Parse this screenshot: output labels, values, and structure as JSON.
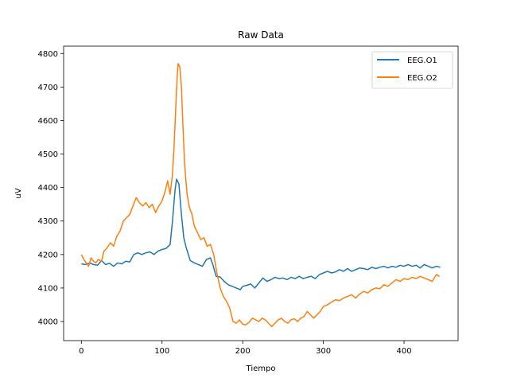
{
  "chart_data": {
    "type": "line",
    "title": "Raw Data",
    "xlabel": "Tiempo",
    "ylabel": "uV",
    "xlim": [
      -22,
      467
    ],
    "ylim": [
      3943,
      4822
    ],
    "xticks": [
      0,
      100,
      200,
      300,
      400
    ],
    "yticks": [
      4000,
      4100,
      4200,
      4300,
      4400,
      4500,
      4600,
      4700,
      4800
    ],
    "legend": "top-right",
    "grid": false,
    "series": [
      {
        "name": "EEG.O1",
        "color": "#1f77b4",
        "points": [
          [
            0,
            4172
          ],
          [
            5,
            4170
          ],
          [
            10,
            4175
          ],
          [
            15,
            4170
          ],
          [
            20,
            4168
          ],
          [
            25,
            4182
          ],
          [
            30,
            4170
          ],
          [
            35,
            4174
          ],
          [
            40,
            4165
          ],
          [
            45,
            4175
          ],
          [
            50,
            4172
          ],
          [
            55,
            4180
          ],
          [
            60,
            4178
          ],
          [
            65,
            4200
          ],
          [
            70,
            4205
          ],
          [
            75,
            4200
          ],
          [
            80,
            4205
          ],
          [
            85,
            4208
          ],
          [
            90,
            4200
          ],
          [
            95,
            4210
          ],
          [
            100,
            4215
          ],
          [
            105,
            4218
          ],
          [
            110,
            4230
          ],
          [
            113,
            4300
          ],
          [
            116,
            4390
          ],
          [
            118,
            4425
          ],
          [
            121,
            4410
          ],
          [
            124,
            4320
          ],
          [
            127,
            4250
          ],
          [
            130,
            4220
          ],
          [
            135,
            4182
          ],
          [
            140,
            4175
          ],
          [
            145,
            4170
          ],
          [
            150,
            4165
          ],
          [
            155,
            4185
          ],
          [
            160,
            4190
          ],
          [
            163,
            4170
          ],
          [
            167,
            4135
          ],
          [
            172,
            4133
          ],
          [
            177,
            4120
          ],
          [
            182,
            4110
          ],
          [
            187,
            4105
          ],
          [
            192,
            4100
          ],
          [
            197,
            4095
          ],
          [
            200,
            4105
          ],
          [
            205,
            4108
          ],
          [
            210,
            4112
          ],
          [
            215,
            4100
          ],
          [
            220,
            4115
          ],
          [
            225,
            4130
          ],
          [
            230,
            4120
          ],
          [
            235,
            4125
          ],
          [
            240,
            4132
          ],
          [
            245,
            4128
          ],
          [
            250,
            4130
          ],
          [
            255,
            4125
          ],
          [
            260,
            4132
          ],
          [
            265,
            4128
          ],
          [
            270,
            4135
          ],
          [
            275,
            4128
          ],
          [
            280,
            4132
          ],
          [
            285,
            4135
          ],
          [
            290,
            4128
          ],
          [
            295,
            4140
          ],
          [
            300,
            4145
          ],
          [
            305,
            4150
          ],
          [
            310,
            4145
          ],
          [
            315,
            4148
          ],
          [
            320,
            4155
          ],
          [
            325,
            4150
          ],
          [
            330,
            4158
          ],
          [
            335,
            4150
          ],
          [
            340,
            4155
          ],
          [
            345,
            4160
          ],
          [
            350,
            4158
          ],
          [
            355,
            4155
          ],
          [
            360,
            4162
          ],
          [
            365,
            4158
          ],
          [
            370,
            4162
          ],
          [
            375,
            4165
          ],
          [
            380,
            4160
          ],
          [
            385,
            4165
          ],
          [
            390,
            4162
          ],
          [
            395,
            4168
          ],
          [
            400,
            4165
          ],
          [
            405,
            4170
          ],
          [
            410,
            4165
          ],
          [
            415,
            4168
          ],
          [
            420,
            4160
          ],
          [
            425,
            4170
          ],
          [
            430,
            4165
          ],
          [
            435,
            4160
          ],
          [
            440,
            4165
          ],
          [
            445,
            4162
          ]
        ]
      },
      {
        "name": "EEG.O2",
        "color": "#ff7f0e",
        "points": [
          [
            0,
            4200
          ],
          [
            3,
            4185
          ],
          [
            6,
            4175
          ],
          [
            9,
            4165
          ],
          [
            12,
            4190
          ],
          [
            15,
            4180
          ],
          [
            18,
            4175
          ],
          [
            21,
            4185
          ],
          [
            25,
            4180
          ],
          [
            28,
            4210
          ],
          [
            32,
            4220
          ],
          [
            36,
            4235
          ],
          [
            40,
            4225
          ],
          [
            44,
            4255
          ],
          [
            48,
            4270
          ],
          [
            52,
            4300
          ],
          [
            56,
            4310
          ],
          [
            60,
            4320
          ],
          [
            64,
            4345
          ],
          [
            68,
            4370
          ],
          [
            72,
            4355
          ],
          [
            76,
            4345
          ],
          [
            80,
            4355
          ],
          [
            84,
            4340
          ],
          [
            88,
            4350
          ],
          [
            92,
            4325
          ],
          [
            96,
            4345
          ],
          [
            100,
            4360
          ],
          [
            104,
            4390
          ],
          [
            107,
            4420
          ],
          [
            110,
            4380
          ],
          [
            113,
            4440
          ],
          [
            115,
            4530
          ],
          [
            117,
            4640
          ],
          [
            119,
            4740
          ],
          [
            120,
            4770
          ],
          [
            122,
            4760
          ],
          [
            124,
            4700
          ],
          [
            126,
            4580
          ],
          [
            128,
            4470
          ],
          [
            131,
            4380
          ],
          [
            134,
            4340
          ],
          [
            137,
            4320
          ],
          [
            140,
            4285
          ],
          [
            144,
            4265
          ],
          [
            148,
            4245
          ],
          [
            152,
            4250
          ],
          [
            156,
            4225
          ],
          [
            160,
            4230
          ],
          [
            164,
            4200
          ],
          [
            168,
            4145
          ],
          [
            172,
            4100
          ],
          [
            176,
            4075
          ],
          [
            180,
            4060
          ],
          [
            184,
            4040
          ],
          [
            188,
            4000
          ],
          [
            192,
            3995
          ],
          [
            196,
            4005
          ],
          [
            200,
            3992
          ],
          [
            204,
            3990
          ],
          [
            208,
            3998
          ],
          [
            212,
            4010
          ],
          [
            216,
            4005
          ],
          [
            220,
            4000
          ],
          [
            224,
            4010
          ],
          [
            228,
            4005
          ],
          [
            232,
            3995
          ],
          [
            236,
            3985
          ],
          [
            240,
            3995
          ],
          [
            244,
            4005
          ],
          [
            248,
            4010
          ],
          [
            252,
            4000
          ],
          [
            256,
            3995
          ],
          [
            260,
            4005
          ],
          [
            264,
            4008
          ],
          [
            268,
            4000
          ],
          [
            272,
            4010
          ],
          [
            276,
            4015
          ],
          [
            280,
            4030
          ],
          [
            284,
            4020
          ],
          [
            288,
            4010
          ],
          [
            292,
            4020
          ],
          [
            296,
            4030
          ],
          [
            300,
            4045
          ],
          [
            305,
            4050
          ],
          [
            310,
            4058
          ],
          [
            315,
            4065
          ],
          [
            320,
            4062
          ],
          [
            325,
            4070
          ],
          [
            330,
            4075
          ],
          [
            335,
            4080
          ],
          [
            340,
            4070
          ],
          [
            345,
            4082
          ],
          [
            350,
            4090
          ],
          [
            355,
            4085
          ],
          [
            360,
            4095
          ],
          [
            365,
            4100
          ],
          [
            370,
            4098
          ],
          [
            375,
            4110
          ],
          [
            380,
            4105
          ],
          [
            385,
            4115
          ],
          [
            390,
            4125
          ],
          [
            395,
            4120
          ],
          [
            400,
            4128
          ],
          [
            405,
            4125
          ],
          [
            410,
            4132
          ],
          [
            415,
            4128
          ],
          [
            420,
            4135
          ],
          [
            425,
            4130
          ],
          [
            430,
            4125
          ],
          [
            435,
            4120
          ],
          [
            440,
            4140
          ],
          [
            444,
            4135
          ]
        ]
      }
    ]
  }
}
